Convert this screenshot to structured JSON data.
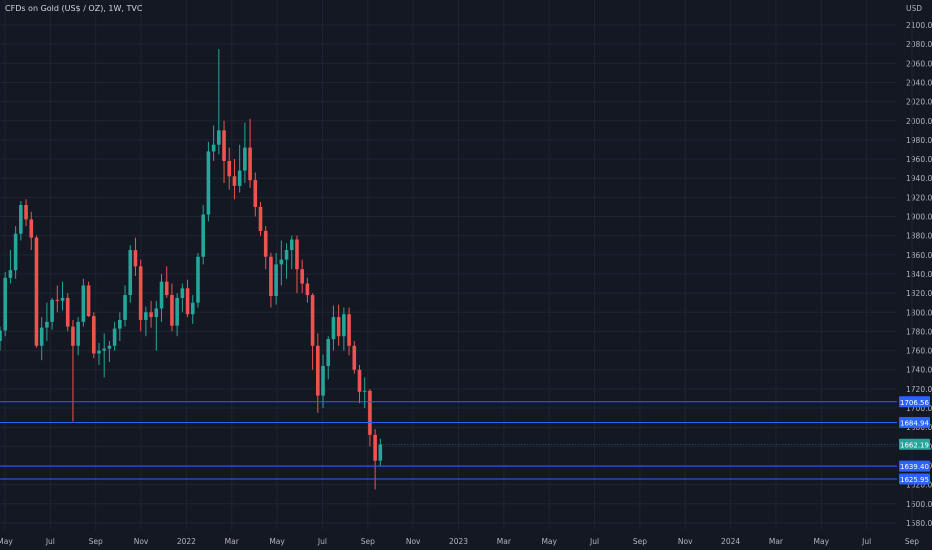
{
  "title": "CFDs on Gold (US$ / OZ), 1W, TVC",
  "colors": {
    "background": "#141823",
    "grid": "#1f2430",
    "up": "#26a69a",
    "down": "#ef5350",
    "level_line": "#2962ff",
    "axis_text": "#b2b5be"
  },
  "chart_data": {
    "type": "candlestick",
    "ylabel": "USD",
    "ylim": [
      1573,
      2114
    ],
    "x_ticks": [
      "May",
      "Jul",
      "Sep",
      "Nov",
      "2022",
      "Mar",
      "May",
      "Jul",
      "Sep",
      "Nov",
      "2023",
      "Mar",
      "May",
      "Jul",
      "Sep",
      "Nov",
      "2024",
      "Mar",
      "May",
      "Jul",
      "Sep"
    ],
    "y_ticks": [
      1580,
      1600,
      1620,
      1640,
      1660,
      1680,
      1700,
      1720,
      1740,
      1760,
      1780,
      1800,
      1820,
      1840,
      1860,
      1880,
      1900,
      1920,
      1940,
      1960,
      1980,
      2000,
      2020,
      2040,
      2060,
      2080,
      2100
    ],
    "candles": [
      {
        "o": 1770,
        "h": 1785,
        "l": 1760,
        "c": 1781
      },
      {
        "o": 1781,
        "h": 1842,
        "l": 1775,
        "c": 1836
      },
      {
        "o": 1836,
        "h": 1865,
        "l": 1830,
        "c": 1844
      },
      {
        "o": 1844,
        "h": 1890,
        "l": 1835,
        "c": 1882
      },
      {
        "o": 1882,
        "h": 1916,
        "l": 1875,
        "c": 1912
      },
      {
        "o": 1912,
        "h": 1918,
        "l": 1890,
        "c": 1897
      },
      {
        "o": 1897,
        "h": 1905,
        "l": 1865,
        "c": 1878
      },
      {
        "o": 1878,
        "h": 1880,
        "l": 1763,
        "c": 1765
      },
      {
        "o": 1765,
        "h": 1795,
        "l": 1750,
        "c": 1784
      },
      {
        "o": 1784,
        "h": 1810,
        "l": 1770,
        "c": 1790
      },
      {
        "o": 1790,
        "h": 1815,
        "l": 1782,
        "c": 1813
      },
      {
        "o": 1813,
        "h": 1828,
        "l": 1800,
        "c": 1812
      },
      {
        "o": 1812,
        "h": 1832,
        "l": 1802,
        "c": 1815
      },
      {
        "o": 1815,
        "h": 1820,
        "l": 1780,
        "c": 1785
      },
      {
        "o": 1785,
        "h": 1792,
        "l": 1686,
        "c": 1765
      },
      {
        "o": 1765,
        "h": 1795,
        "l": 1755,
        "c": 1790
      },
      {
        "o": 1790,
        "h": 1835,
        "l": 1785,
        "c": 1828
      },
      {
        "o": 1828,
        "h": 1832,
        "l": 1795,
        "c": 1796
      },
      {
        "o": 1796,
        "h": 1800,
        "l": 1752,
        "c": 1757
      },
      {
        "o": 1757,
        "h": 1768,
        "l": 1745,
        "c": 1760
      },
      {
        "o": 1760,
        "h": 1778,
        "l": 1732,
        "c": 1762
      },
      {
        "o": 1762,
        "h": 1770,
        "l": 1748,
        "c": 1765
      },
      {
        "o": 1765,
        "h": 1790,
        "l": 1760,
        "c": 1783
      },
      {
        "o": 1783,
        "h": 1800,
        "l": 1770,
        "c": 1792
      },
      {
        "o": 1792,
        "h": 1828,
        "l": 1785,
        "c": 1818
      },
      {
        "o": 1818,
        "h": 1870,
        "l": 1810,
        "c": 1865
      },
      {
        "o": 1865,
        "h": 1878,
        "l": 1838,
        "c": 1848
      },
      {
        "o": 1848,
        "h": 1855,
        "l": 1780,
        "c": 1792
      },
      {
        "o": 1792,
        "h": 1806,
        "l": 1775,
        "c": 1800
      },
      {
        "o": 1800,
        "h": 1812,
        "l": 1784,
        "c": 1795
      },
      {
        "o": 1795,
        "h": 1812,
        "l": 1760,
        "c": 1804
      },
      {
        "o": 1804,
        "h": 1840,
        "l": 1790,
        "c": 1832
      },
      {
        "o": 1832,
        "h": 1848,
        "l": 1815,
        "c": 1818
      },
      {
        "o": 1818,
        "h": 1830,
        "l": 1780,
        "c": 1786
      },
      {
        "o": 1786,
        "h": 1820,
        "l": 1775,
        "c": 1815
      },
      {
        "o": 1815,
        "h": 1830,
        "l": 1800,
        "c": 1825
      },
      {
        "o": 1825,
        "h": 1834,
        "l": 1795,
        "c": 1798
      },
      {
        "o": 1798,
        "h": 1818,
        "l": 1788,
        "c": 1810
      },
      {
        "o": 1810,
        "h": 1862,
        "l": 1805,
        "c": 1858
      },
      {
        "o": 1858,
        "h": 1912,
        "l": 1850,
        "c": 1902
      },
      {
        "o": 1902,
        "h": 1978,
        "l": 1895,
        "c": 1968
      },
      {
        "o": 1968,
        "h": 1995,
        "l": 1958,
        "c": 1975
      },
      {
        "o": 1975,
        "h": 2075,
        "l": 1965,
        "c": 1990
      },
      {
        "o": 1990,
        "h": 2000,
        "l": 1935,
        "c": 1958
      },
      {
        "o": 1958,
        "h": 1972,
        "l": 1928,
        "c": 1942
      },
      {
        "o": 1942,
        "h": 1960,
        "l": 1918,
        "c": 1932
      },
      {
        "o": 1932,
        "h": 1975,
        "l": 1925,
        "c": 1948
      },
      {
        "o": 1948,
        "h": 1998,
        "l": 1935,
        "c": 1972
      },
      {
        "o": 1972,
        "h": 2002,
        "l": 1930,
        "c": 1938
      },
      {
        "o": 1938,
        "h": 1946,
        "l": 1900,
        "c": 1910
      },
      {
        "o": 1910,
        "h": 1915,
        "l": 1880,
        "c": 1885
      },
      {
        "o": 1885,
        "h": 1890,
        "l": 1845,
        "c": 1858
      },
      {
        "o": 1858,
        "h": 1862,
        "l": 1805,
        "c": 1817
      },
      {
        "o": 1817,
        "h": 1862,
        "l": 1808,
        "c": 1850
      },
      {
        "o": 1850,
        "h": 1875,
        "l": 1828,
        "c": 1855
      },
      {
        "o": 1855,
        "h": 1872,
        "l": 1835,
        "c": 1865
      },
      {
        "o": 1865,
        "h": 1880,
        "l": 1845,
        "c": 1876
      },
      {
        "o": 1876,
        "h": 1880,
        "l": 1820,
        "c": 1845
      },
      {
        "o": 1845,
        "h": 1855,
        "l": 1820,
        "c": 1830
      },
      {
        "o": 1830,
        "h": 1836,
        "l": 1810,
        "c": 1818
      },
      {
        "o": 1818,
        "h": 1820,
        "l": 1740,
        "c": 1765
      },
      {
        "o": 1765,
        "h": 1778,
        "l": 1695,
        "c": 1713
      },
      {
        "o": 1713,
        "h": 1756,
        "l": 1700,
        "c": 1744
      },
      {
        "o": 1744,
        "h": 1775,
        "l": 1730,
        "c": 1772
      },
      {
        "o": 1772,
        "h": 1807,
        "l": 1760,
        "c": 1795
      },
      {
        "o": 1795,
        "h": 1808,
        "l": 1765,
        "c": 1775
      },
      {
        "o": 1775,
        "h": 1805,
        "l": 1760,
        "c": 1798
      },
      {
        "o": 1798,
        "h": 1805,
        "l": 1755,
        "c": 1765
      },
      {
        "o": 1765,
        "h": 1770,
        "l": 1736,
        "c": 1740
      },
      {
        "o": 1740,
        "h": 1745,
        "l": 1705,
        "c": 1717
      },
      {
        "o": 1717,
        "h": 1732,
        "l": 1700,
        "c": 1718
      },
      {
        "o": 1718,
        "h": 1720,
        "l": 1660,
        "c": 1672
      },
      {
        "o": 1672,
        "h": 1678,
        "l": 1615,
        "c": 1645
      },
      {
        "o": 1645,
        "h": 1668,
        "l": 1639,
        "c": 1662
      }
    ],
    "horizontal_levels": [
      {
        "value": 1706.56,
        "label": "1706.56"
      },
      {
        "value": 1684.94,
        "label": "1684.94"
      },
      {
        "value": 1639.4,
        "label": "1639.40"
      },
      {
        "value": 1625.95,
        "label": "1625.95"
      }
    ],
    "last_price": {
      "value": 1662.19,
      "label": "1662.19"
    }
  }
}
